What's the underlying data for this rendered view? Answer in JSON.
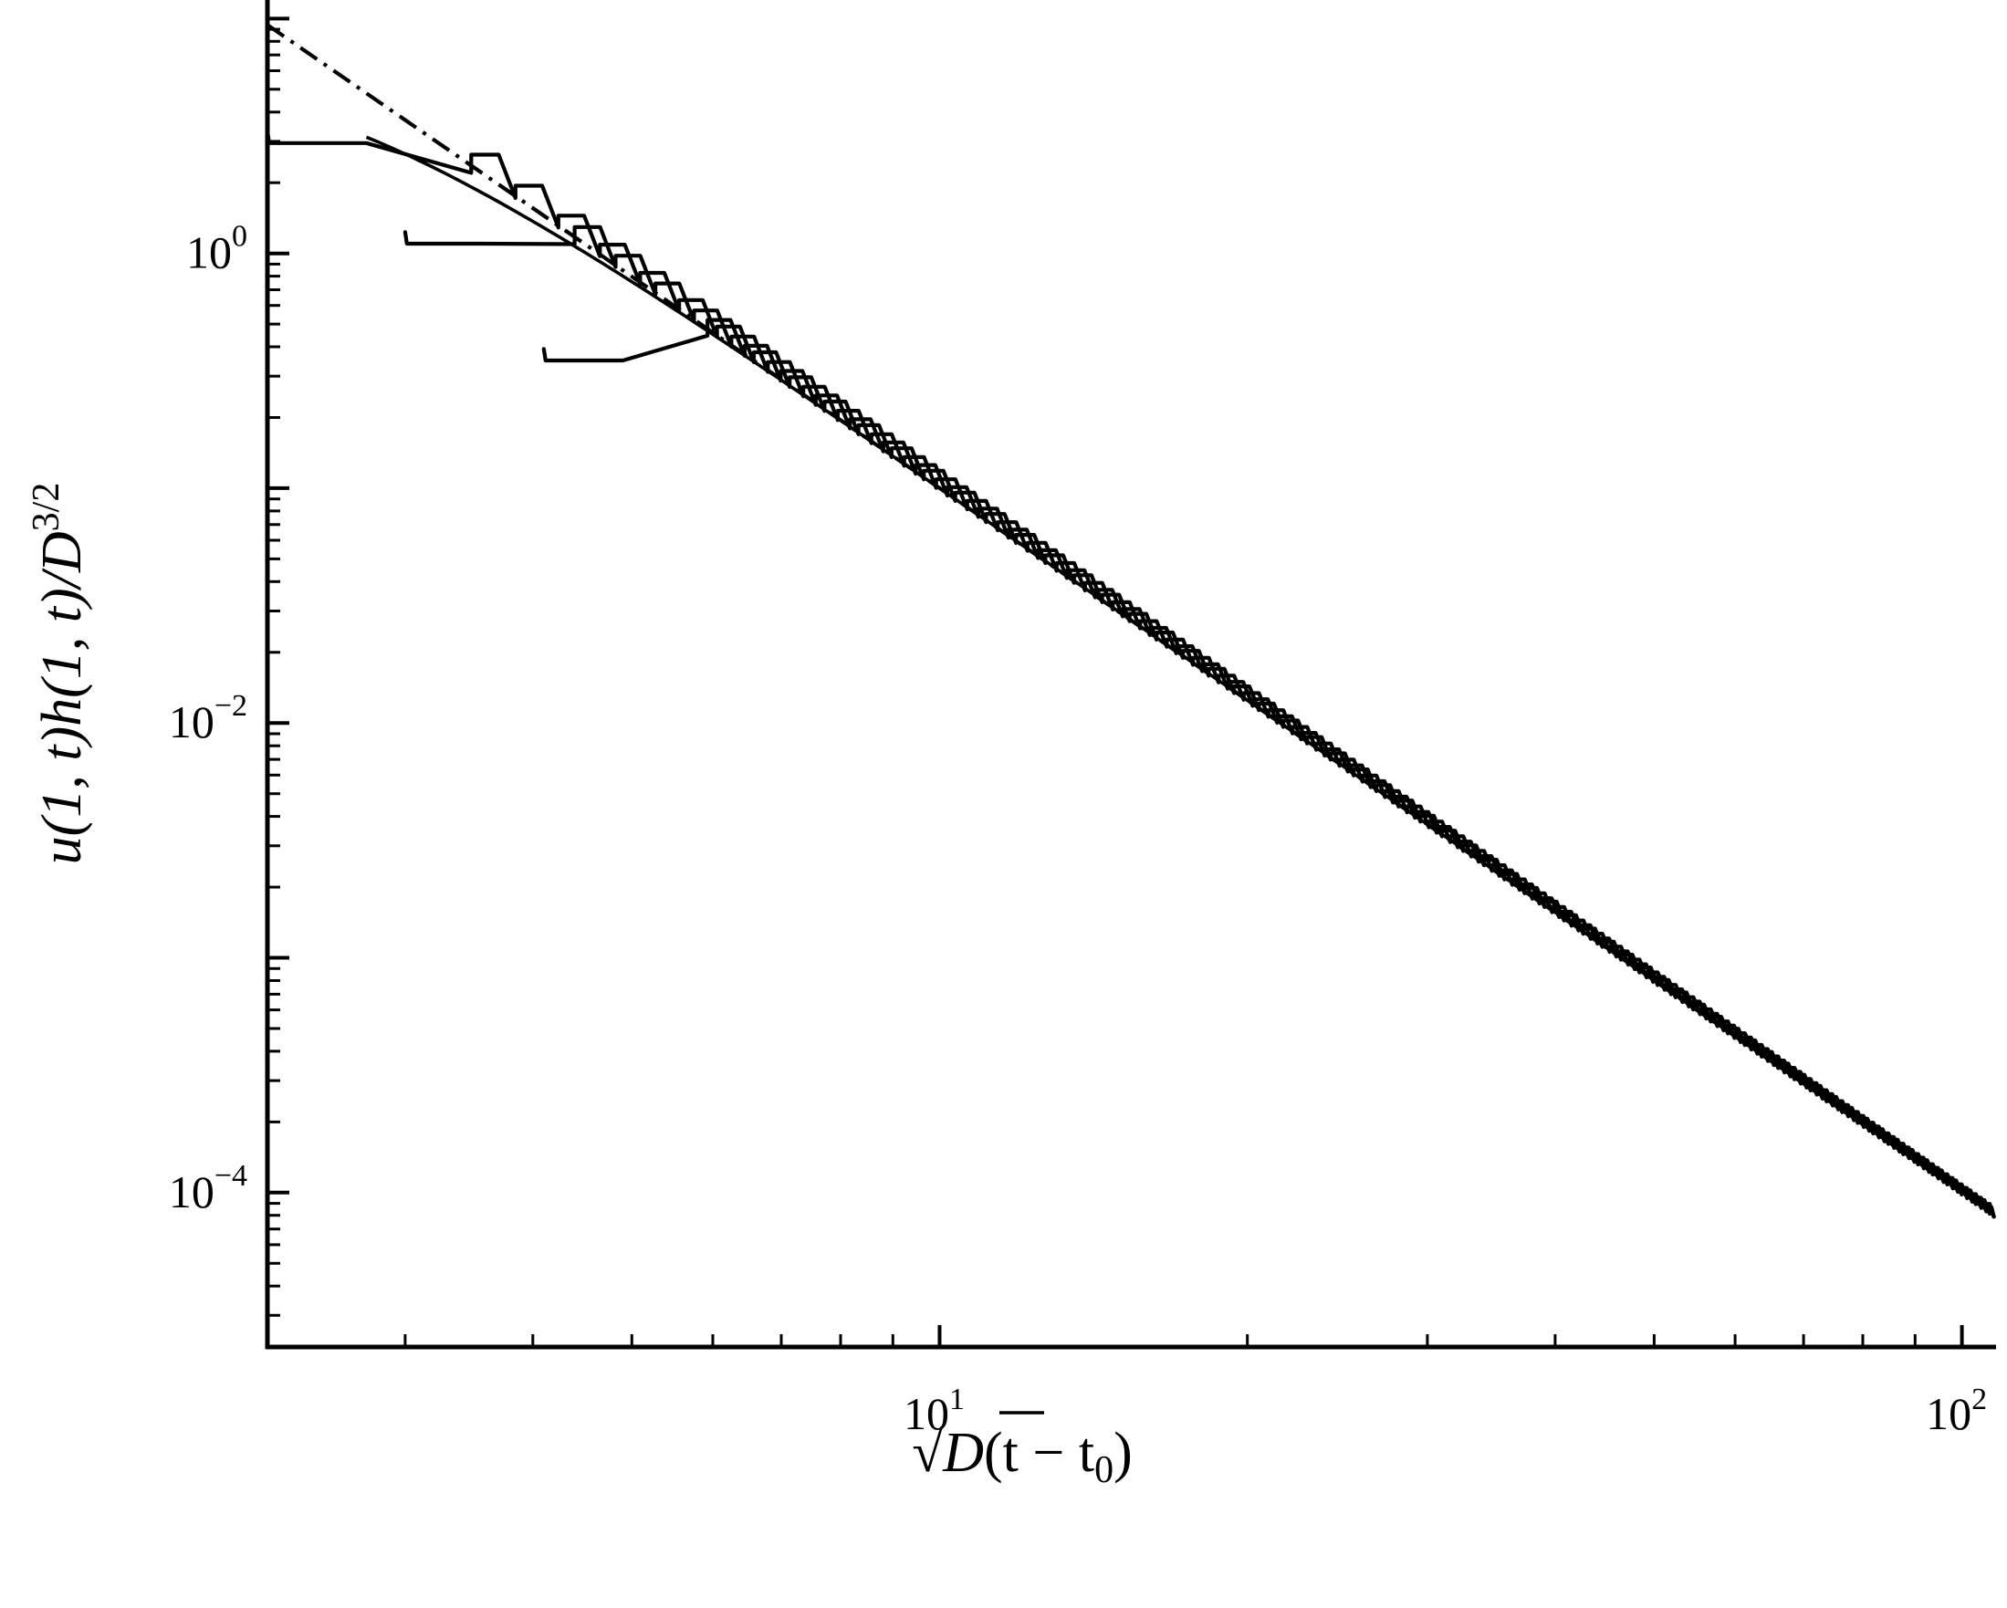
{
  "chart_data": {
    "type": "line",
    "title": "",
    "x_scale": "log",
    "y_scale": "log",
    "xlim": [
      2.2,
      108
    ],
    "ylim": [
      2.2e-05,
      12
    ],
    "x_ticks": [
      {
        "value": 10,
        "base": "10",
        "exp": "1"
      },
      {
        "value": 100,
        "base": "10",
        "exp": "2"
      }
    ],
    "y_ticks": [
      {
        "value": 1,
        "base": "10",
        "exp": "0"
      },
      {
        "value": 0.01,
        "base": "10",
        "exp": "−2"
      },
      {
        "value": 0.0001,
        "base": "10",
        "exp": "−4"
      }
    ],
    "xlabel": {
      "sqrt_body": "D",
      "rest": "(t − t",
      "sub": "0",
      "close": ")"
    },
    "ylabel": {
      "main": "u(1, t)h(1, t)/D",
      "sup": "3/2"
    },
    "reference_curve": {
      "style": "dash-dot",
      "law": "power",
      "exponent": -3,
      "x": [
        2.2,
        3,
        4,
        6,
        8,
        10,
        15,
        20,
        30,
        50,
        100
      ],
      "y": [
        9.4,
        3.7,
        1.56,
        0.46,
        0.195,
        0.1,
        0.0296,
        0.0125,
        0.0037,
        0.0008,
        0.0001
      ]
    },
    "stepped_series": [
      {
        "start_x": 2.2,
        "start_y": 2.95,
        "rise_x": 2.75,
        "fall_width": 0.19
      },
      {
        "start_x": 3.0,
        "start_y": 1.1,
        "rise_x": 3.55,
        "fall_width": 0.17
      },
      {
        "start_x": 4.1,
        "start_y": 0.35,
        "rise_x": 4.9,
        "fall_width": 0.15
      }
    ],
    "step_ratio": 1.1,
    "step_flat_fraction": 0.62
  },
  "colors": {
    "line": "#000000",
    "background": "#ffffff"
  }
}
